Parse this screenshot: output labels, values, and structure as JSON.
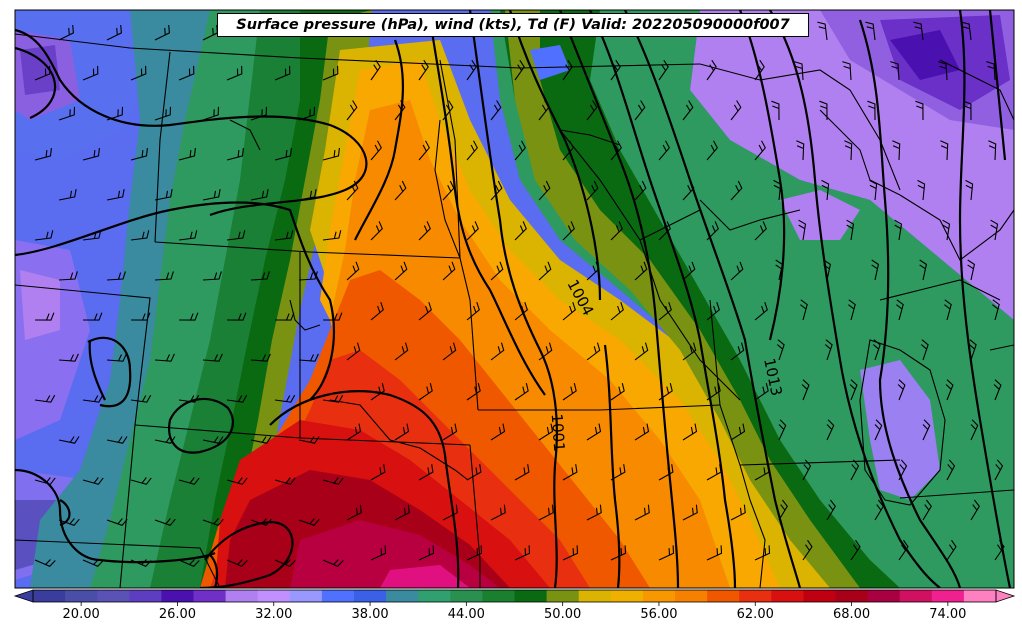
{
  "title": "Surface pressure (hPa), wind (kts), Td (F) Valid: 202205090000f007",
  "colorbar": {
    "tick_labels": [
      "20.00",
      "26.00",
      "32.00",
      "38.00",
      "44.00",
      "50.00",
      "56.00",
      "62.00",
      "68.00",
      "74.00"
    ],
    "colors": [
      "#3a3c9e",
      "#4a4ea8",
      "#5a52b4",
      "#5e3ec0",
      "#4a10b0",
      "#7030c8",
      "#b080f0",
      "#c090ff",
      "#9898ff",
      "#5070ff",
      "#3a60e8",
      "#3a8aa0",
      "#30a070",
      "#2a9050",
      "#1a8030",
      "#0a6a12",
      "#7a9212",
      "#dab400",
      "#f0b000",
      "#f89800",
      "#f88000",
      "#f05800",
      "#e83010",
      "#d81010",
      "#c00010",
      "#a80018",
      "#a80040",
      "#d01060",
      "#f02090",
      "#ff80c0"
    ],
    "range": [
      17,
      77
    ]
  },
  "isobar_labels": [
    "1004",
    "1001",
    "1013"
  ],
  "field": {
    "variable": "Dewpoint (F)",
    "overlays": [
      "Surface pressure isobars (hPa)",
      "Wind barbs (kts)",
      "State and country borders"
    ]
  }
}
